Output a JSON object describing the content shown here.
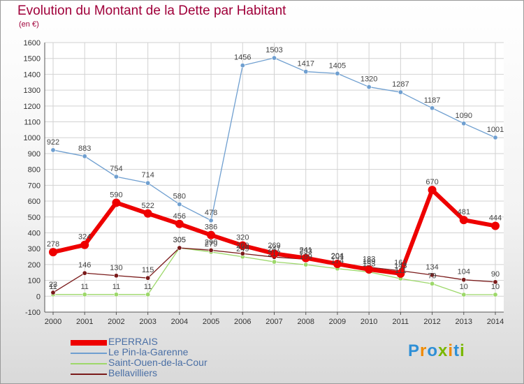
{
  "title": "Evolution du Montant de la Dette par Habitant",
  "subtitle": "(en €)",
  "logo_text": "Proxiti",
  "chart_data": {
    "type": "line",
    "x": [
      "2000",
      "2001",
      "2002",
      "2003",
      "2004",
      "2005",
      "2006",
      "2007",
      "2008",
      "2009",
      "2010",
      "2011",
      "2012",
      "2013",
      "2014"
    ],
    "ylim": [
      -100,
      1600
    ],
    "yticks": [
      -100,
      0,
      100,
      200,
      300,
      400,
      500,
      600,
      700,
      800,
      900,
      1000,
      1100,
      1200,
      1300,
      1400,
      1500,
      1600
    ],
    "grid": true,
    "legend_position": "bottom-left",
    "series": [
      {
        "name": "EPERRAIS",
        "color": "#ee0000",
        "values": [
          278,
          324,
          590,
          522,
          456,
          386,
          320,
          269,
          241,
          204,
          169,
          143,
          670,
          481,
          444
        ]
      },
      {
        "name": "Le Pin-la-Garenne",
        "color": "#6f9fd0",
        "values": [
          922,
          883,
          754,
          714,
          580,
          478,
          1456,
          1503,
          1417,
          1405,
          1320,
          1287,
          1187,
          1090,
          1001
        ]
      },
      {
        "name": "Saint-Ouen-de-la-Cour",
        "color": "#9dd86a",
        "values": [
          11,
          11,
          11,
          11,
          305,
          279,
          249,
          217,
          199,
          174,
          153,
          111,
          79,
          10,
          10
        ]
      },
      {
        "name": "Bellavilliers",
        "color": "#7a1a1a",
        "values": [
          23,
          146,
          130,
          115,
          305,
          290,
          269,
          247,
          233,
          201,
          183,
          161,
          134,
          104,
          90
        ]
      }
    ]
  }
}
